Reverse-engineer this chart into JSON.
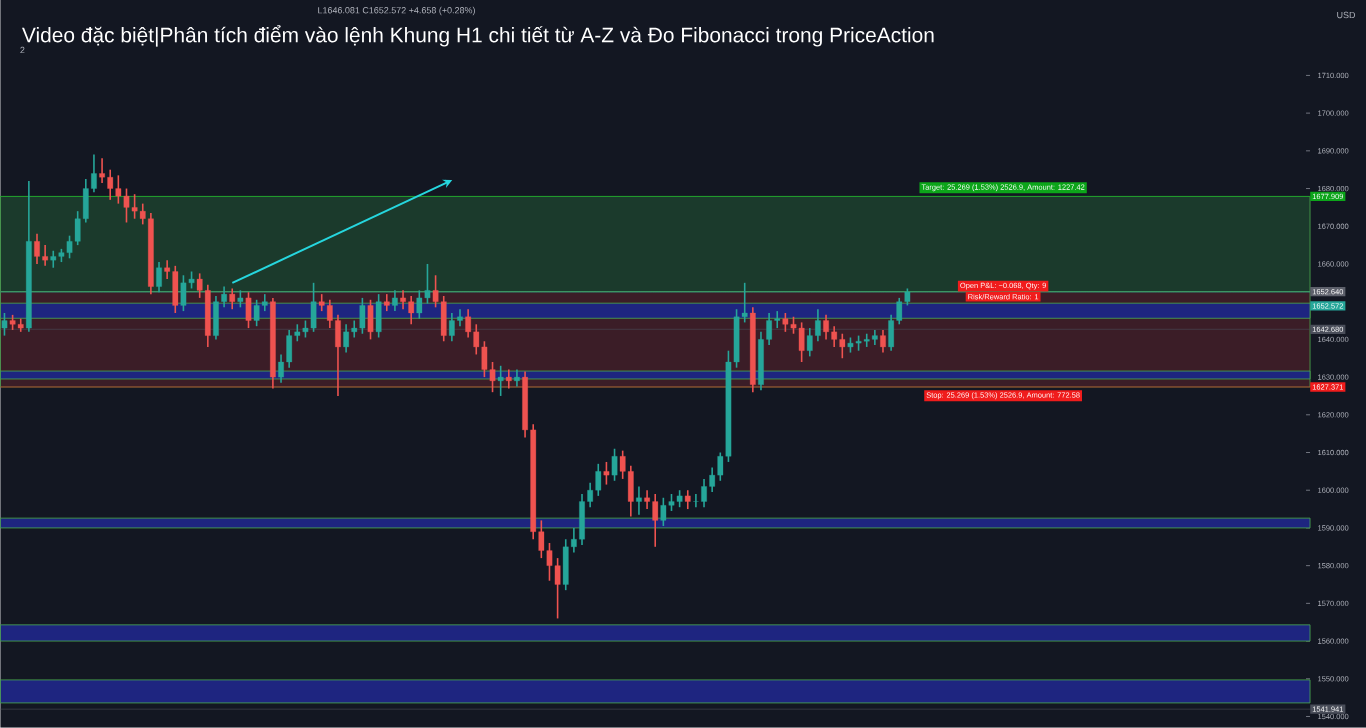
{
  "chart_data": {
    "type": "candlestick",
    "title": "Video đặc biệt|Phân tích điểm vào lệnh Khung H1 chi tiết từ A-Z và Đo Fibonacci trong PriceAction",
    "categories": [
      null,
      null,
      null,
      null,
      null,
      null,
      null,
      null,
      null,
      null,
      null,
      null,
      null,
      null,
      null,
      null,
      null,
      null,
      null,
      null,
      null,
      null,
      null,
      null,
      null,
      null,
      null,
      null,
      null,
      null,
      null,
      null,
      null,
      null,
      null,
      null,
      null,
      null,
      null,
      null,
      null,
      null,
      null,
      null,
      null,
      null,
      null,
      null,
      null,
      null,
      null,
      null,
      null,
      null,
      null,
      null,
      null,
      null,
      null,
      null,
      null,
      null,
      null,
      null,
      null,
      null,
      null,
      null,
      null,
      null,
      null,
      null,
      null,
      null,
      null,
      null,
      null,
      null,
      null,
      null,
      null,
      null,
      null,
      null,
      null,
      null,
      null,
      null,
      null,
      null,
      null,
      null,
      null,
      null,
      null,
      null,
      null,
      null,
      null,
      null,
      null,
      null,
      null,
      null,
      null,
      null,
      null,
      null,
      null,
      null,
      null,
      null,
      null,
      null,
      null,
      null,
      null,
      null,
      null,
      null,
      null,
      null,
      null,
      null,
      null,
      null,
      null,
      null,
      null,
      null,
      null,
      null,
      null,
      null,
      null,
      null,
      null,
      null,
      null,
      null,
      null,
      null,
      null,
      null,
      null,
      null,
      null,
      null,
      null,
      null,
      null,
      null,
      null,
      null,
      null,
      null,
      null,
      null,
      null,
      null,
      null
    ],
    "ohlc": [
      [
        1643,
        1647,
        1641,
        1645
      ],
      [
        1645,
        1646.5,
        1642.5,
        1644
      ],
      [
        1644,
        1645.5,
        1642,
        1643
      ],
      [
        1643,
        1682,
        1642,
        1666
      ],
      [
        1666,
        1668,
        1660,
        1662
      ],
      [
        1662,
        1665,
        1659.5,
        1661
      ],
      [
        1661,
        1663.5,
        1659,
        1662
      ],
      [
        1662,
        1664,
        1660.5,
        1663
      ],
      [
        1663,
        1667.5,
        1661.5,
        1666
      ],
      [
        1666,
        1674,
        1665,
        1672
      ],
      [
        1672,
        1682.5,
        1671,
        1680
      ],
      [
        1680,
        1689,
        1679,
        1684
      ],
      [
        1684,
        1688,
        1681.5,
        1683
      ],
      [
        1683,
        1685,
        1677,
        1680
      ],
      [
        1680,
        1683.5,
        1676,
        1678
      ],
      [
        1678,
        1680,
        1671,
        1675
      ],
      [
        1675,
        1678.5,
        1672,
        1674
      ],
      [
        1674,
        1676,
        1670.5,
        1672
      ],
      [
        1672,
        1673.5,
        1652,
        1654
      ],
      [
        1654,
        1660.5,
        1652.5,
        1659
      ],
      [
        1659,
        1661,
        1656,
        1658
      ],
      [
        1658,
        1659.5,
        1647,
        1649
      ],
      [
        1649,
        1657,
        1647.5,
        1655
      ],
      [
        1655,
        1658,
        1653.5,
        1656
      ],
      [
        1656,
        1657.5,
        1651,
        1653
      ],
      [
        1653,
        1654.5,
        1638,
        1641
      ],
      [
        1641,
        1651.5,
        1640,
        1650
      ],
      [
        1650,
        1654,
        1648.5,
        1652
      ],
      [
        1652,
        1653.5,
        1648,
        1650
      ],
      [
        1650,
        1653,
        1648.5,
        1651
      ],
      [
        1651,
        1652.5,
        1643,
        1645
      ],
      [
        1645,
        1650.5,
        1643.5,
        1649
      ],
      [
        1649,
        1652,
        1647.5,
        1650
      ],
      [
        1650,
        1651,
        1627,
        1630
      ],
      [
        1630,
        1636,
        1628.5,
        1634
      ],
      [
        1634,
        1642.5,
        1632.5,
        1641
      ],
      [
        1641,
        1644,
        1639.5,
        1642
      ],
      [
        1642,
        1645,
        1640.5,
        1643
      ],
      [
        1643,
        1655,
        1642,
        1650
      ],
      [
        1650,
        1652,
        1647.5,
        1649
      ],
      [
        1649,
        1650.5,
        1643,
        1645
      ],
      [
        1645,
        1646.5,
        1625,
        1638
      ],
      [
        1638,
        1644,
        1636.5,
        1642
      ],
      [
        1642,
        1645,
        1640.5,
        1643
      ],
      [
        1643,
        1651,
        1641.5,
        1649
      ],
      [
        1649,
        1650.5,
        1640,
        1642
      ],
      [
        1642,
        1652,
        1640.5,
        1650
      ],
      [
        1650,
        1652,
        1647.5,
        1649
      ],
      [
        1649,
        1653,
        1647.5,
        1651
      ],
      [
        1651,
        1653,
        1648,
        1650
      ],
      [
        1650,
        1651.5,
        1644,
        1647
      ],
      [
        1647,
        1653,
        1645.5,
        1651
      ],
      [
        1651,
        1660,
        1649.5,
        1653
      ],
      [
        1653,
        1657,
        1648.5,
        1650
      ],
      [
        1650,
        1651.5,
        1639.5,
        1641
      ],
      [
        1641,
        1647,
        1639.5,
        1645
      ],
      [
        1645,
        1648,
        1643.5,
        1646
      ],
      [
        1646,
        1648,
        1640.5,
        1642
      ],
      [
        1642,
        1644,
        1636,
        1638
      ],
      [
        1638,
        1639.5,
        1630,
        1632
      ],
      [
        1632,
        1634,
        1626,
        1629
      ],
      [
        1629,
        1633,
        1625,
        1630
      ],
      [
        1630,
        1632,
        1627,
        1629
      ],
      [
        1629,
        1632,
        1627.5,
        1630
      ],
      [
        1630,
        1631.5,
        1614,
        1616
      ],
      [
        1616,
        1617.5,
        1587,
        1589
      ],
      [
        1589,
        1592,
        1582,
        1584
      ],
      [
        1584,
        1586,
        1576,
        1580
      ],
      [
        1580,
        1582,
        1566,
        1575
      ],
      [
        1575,
        1587,
        1573.5,
        1585
      ],
      [
        1585,
        1590,
        1583.5,
        1587
      ],
      [
        1587,
        1599,
        1585.5,
        1597
      ],
      [
        1597,
        1602,
        1595.5,
        1600
      ],
      [
        1600,
        1607,
        1598.5,
        1605
      ],
      [
        1605,
        1607.5,
        1601.5,
        1604
      ],
      [
        1604,
        1611,
        1602.5,
        1609
      ],
      [
        1609,
        1610.5,
        1603,
        1605
      ],
      [
        1605,
        1606.5,
        1593,
        1597
      ],
      [
        1597,
        1601,
        1593.5,
        1598
      ],
      [
        1598,
        1600,
        1595,
        1597
      ],
      [
        1597,
        1599,
        1585,
        1592
      ],
      [
        1592,
        1598,
        1590.5,
        1596
      ],
      [
        1596,
        1599,
        1594.5,
        1597
      ],
      [
        1597,
        1600,
        1595.5,
        1598.5
      ],
      [
        1598.5,
        1600,
        1595,
        1597
      ],
      [
        1597,
        1599,
        1595.5,
        1597
      ],
      [
        1597,
        1603,
        1595.5,
        1601
      ],
      [
        1601,
        1606,
        1599.5,
        1604
      ],
      [
        1604,
        1610,
        1602.5,
        1609
      ],
      [
        1609,
        1637,
        1607.5,
        1634
      ],
      [
        1634,
        1648,
        1632.5,
        1646
      ],
      [
        1646,
        1655,
        1644.5,
        1647
      ],
      [
        1647,
        1648.5,
        1626,
        1628
      ],
      [
        1628,
        1642,
        1626.5,
        1640
      ],
      [
        1640,
        1647,
        1638.5,
        1645
      ],
      [
        1645,
        1647.5,
        1643,
        1645.5
      ],
      [
        1645.5,
        1647,
        1642,
        1644
      ],
      [
        1644,
        1646,
        1641.5,
        1643
      ],
      [
        1643,
        1644.5,
        1634,
        1637
      ],
      [
        1637,
        1643,
        1635.5,
        1641
      ],
      [
        1641,
        1648,
        1639.5,
        1645
      ],
      [
        1645,
        1646.5,
        1640,
        1642
      ],
      [
        1642,
        1643.5,
        1638,
        1640
      ],
      [
        1640,
        1641.5,
        1635,
        1638
      ],
      [
        1638,
        1640.5,
        1636.5,
        1639
      ],
      [
        1639,
        1641,
        1637,
        1639.5
      ],
      [
        1639.5,
        1641.5,
        1638,
        1640
      ],
      [
        1640,
        1642.5,
        1638.5,
        1641
      ],
      [
        1641,
        1642.5,
        1636.5,
        1638
      ],
      [
        1638,
        1646.5,
        1637,
        1645
      ],
      [
        1645,
        1651,
        1644,
        1650
      ],
      [
        1650,
        1653.5,
        1649,
        1652.572
      ],
      null,
      null,
      null,
      null,
      null,
      null,
      null,
      null,
      null,
      null,
      null,
      null,
      null,
      null,
      null,
      null,
      null,
      null,
      null,
      null,
      null,
      null,
      null,
      null,
      null,
      null,
      null,
      null,
      null,
      null,
      null,
      null,
      null,
      null,
      null,
      null,
      null,
      null,
      null,
      null,
      null,
      null,
      null,
      null,
      null,
      null,
      null,
      null,
      null
    ],
    "ylim": [
      1537,
      1730
    ],
    "yticks": [
      {
        "value": 1540,
        "label": "1540.000"
      },
      {
        "value": 1550,
        "label": "1550.000"
      },
      {
        "value": 1560,
        "label": "1560.000"
      },
      {
        "value": 1570,
        "label": "1570.000"
      },
      {
        "value": 1580,
        "label": "1580.000"
      },
      {
        "value": 1590,
        "label": "1590.000"
      },
      {
        "value": 1600,
        "label": "1600.000"
      },
      {
        "value": 1610,
        "label": "1610.000"
      },
      {
        "value": 1620,
        "label": "1620.000"
      },
      {
        "value": 1630,
        "label": "1630.000"
      },
      {
        "value": 1640,
        "label": "1640.000"
      },
      {
        "value": 1650,
        "label": null
      },
      {
        "value": 1660,
        "label": "1660.000"
      },
      {
        "value": 1670,
        "label": "1670.000"
      },
      {
        "value": 1680,
        "label": "1680.000"
      },
      {
        "value": 1690,
        "label": "1690.000"
      },
      {
        "value": 1700,
        "label": "1700.000"
      },
      {
        "value": 1710,
        "label": "1710.000"
      }
    ],
    "tick_labels": "y",
    "bands": [
      {
        "axis": "y",
        "from": 1652.64,
        "to": 1677.909,
        "color": "#1b3a2c"
      },
      {
        "axis": "y",
        "from": 1627.371,
        "to": 1652.64,
        "color": "#3b1d27"
      },
      {
        "axis": "y",
        "from": 1645.6,
        "to": 1649.6,
        "color": "#1e2580"
      },
      {
        "axis": "y",
        "from": 1629.5,
        "to": 1631.6,
        "color": "#1e2580"
      },
      {
        "axis": "y",
        "from": 1590,
        "to": 1592.6,
        "color": "#1e2580"
      },
      {
        "axis": "y",
        "from": 1560,
        "to": 1564.3,
        "color": "#1e2580"
      },
      {
        "axis": "y",
        "from": 1543.6,
        "to": 1549.7,
        "color": "#1e2580"
      }
    ],
    "ref_lines": [
      {
        "axis": "y",
        "value": 1652.64,
        "label": "1652.640",
        "color": "#5d606b",
        "line_style": "dotted"
      },
      {
        "axis": "y",
        "value": 1652.572,
        "label": "1652.572",
        "color": "#26a69a"
      },
      {
        "axis": "y",
        "value": 1677.909,
        "label": "1677.909",
        "color": "#0ca51a"
      },
      {
        "axis": "y",
        "value": 1642.68,
        "label": "1642.680",
        "color": "#4a4e5a"
      },
      {
        "axis": "y",
        "value": 1627.371,
        "label": "1627.371",
        "color": "#f01c1c"
      },
      {
        "axis": "y",
        "value": 1541.941,
        "label": "1541.941",
        "color": "#4a4e5a"
      }
    ],
    "annotations": [
      "L1646.081 C1652.572 +4.658 (+0.28%)",
      "USD",
      "2",
      {
        "text": "Target: 25.269 (1.53%) 2526.9, Amount: 1227.42",
        "y": 1677.909
      },
      {
        "text": "Open P&L: −0.068, Qty: 9",
        "y": 1652.64
      },
      "Risk/Reward Ratio: 1",
      {
        "text": "Stop: 25.269 (1.53%) 2526.9, Amount: 772.58",
        "y": 1627.371
      }
    ]
  }
}
